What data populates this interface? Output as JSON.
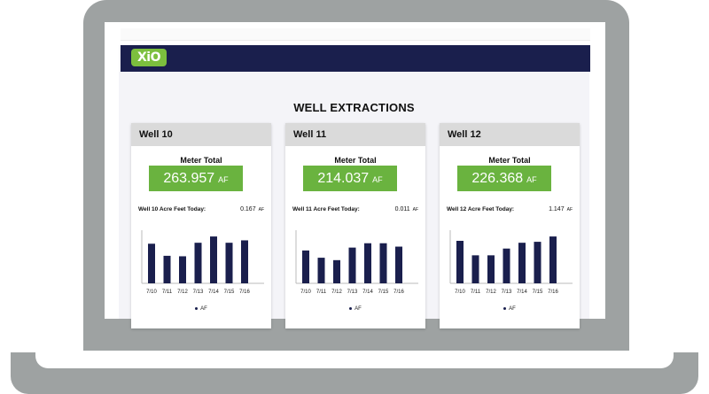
{
  "app": {
    "logo_text": "XiO",
    "page_title": "WELL EXTRACTIONS",
    "colors": {
      "header": "#1a1f4d",
      "accent_green": "#6ab33f",
      "bar": "#1a1f4d"
    }
  },
  "wells": [
    {
      "name": "Well 10",
      "meter_title": "Meter Total",
      "meter_value": "263.957",
      "meter_unit": "AF",
      "today_label": "Well 10 Acre Feet Today:",
      "today_value": "0.167",
      "today_unit": "AF",
      "legend": "AF"
    },
    {
      "name": "Well 11",
      "meter_title": "Meter Total",
      "meter_value": "214.037",
      "meter_unit": "AF",
      "today_label": "Well 11 Acre Feet Today:",
      "today_value": "0.011",
      "today_unit": "AF",
      "legend": "AF"
    },
    {
      "name": "Well 12",
      "meter_title": "Meter Total",
      "meter_value": "226.368",
      "meter_unit": "AF",
      "today_label": "Well 12 Acre Feet Today:",
      "today_value": "1.147",
      "today_unit": "AF",
      "legend": "AF"
    }
  ],
  "chart_data": [
    {
      "type": "bar",
      "categories": [
        "7/10",
        "7/11",
        "7/12",
        "7/13",
        "7/14",
        "7/15",
        "7/16"
      ],
      "series": [
        {
          "name": "AF",
          "values": [
            0.82,
            0.57,
            0.56,
            0.84,
            0.97,
            0.84,
            0.89
          ]
        }
      ],
      "ylim": [
        0,
        1.1
      ]
    },
    {
      "type": "bar",
      "categories": [
        "7/10",
        "7/11",
        "7/12",
        "7/13",
        "7/14",
        "7/15",
        "7/16"
      ],
      "series": [
        {
          "name": "AF",
          "values": [
            0.68,
            0.53,
            0.48,
            0.74,
            0.83,
            0.83,
            0.76
          ]
        }
      ],
      "ylim": [
        0,
        1.1
      ]
    },
    {
      "type": "bar",
      "categories": [
        "7/10",
        "7/11",
        "7/12",
        "7/13",
        "7/14",
        "7/15",
        "7/16"
      ],
      "series": [
        {
          "name": "AF",
          "values": [
            0.88,
            0.58,
            0.58,
            0.72,
            0.84,
            0.86,
            0.97
          ]
        }
      ],
      "ylim": [
        0,
        1.1
      ]
    }
  ]
}
